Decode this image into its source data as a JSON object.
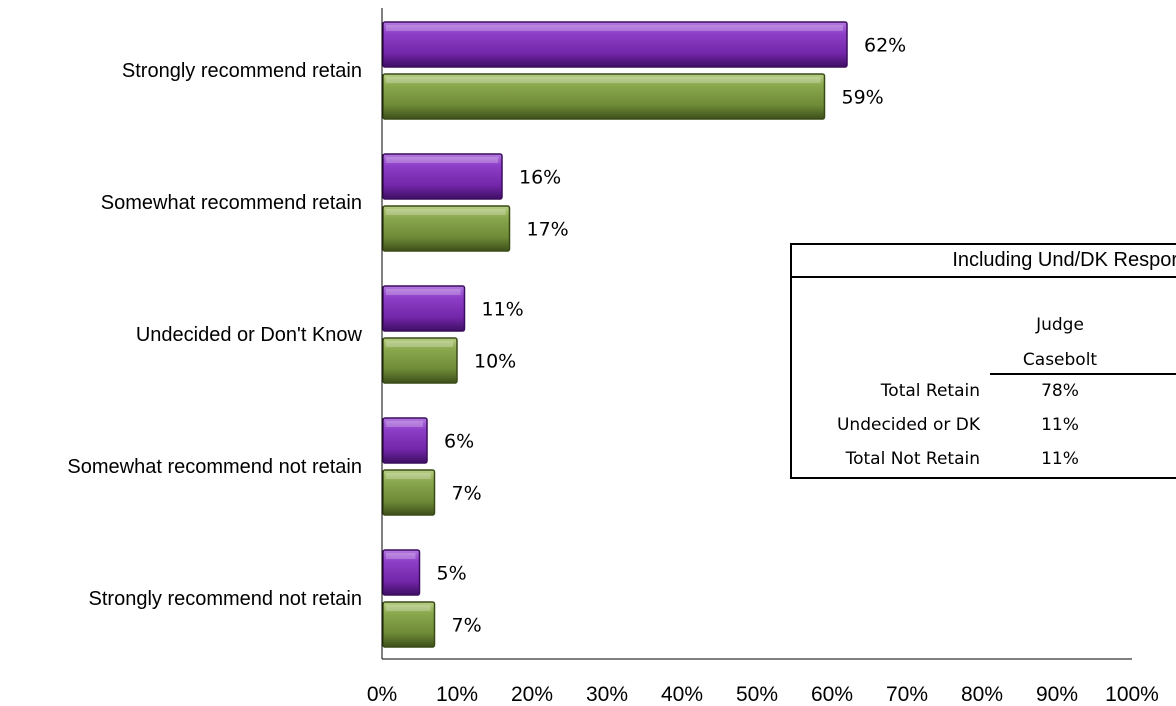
{
  "chart_data": {
    "type": "bar",
    "orientation": "horizontal",
    "categories": [
      "Strongly recommend retain",
      "Somewhat recommend retain",
      "Undecided or Don't Know",
      "Somewhat recommend not retain",
      "Strongly recommend not retain"
    ],
    "series": [
      {
        "values": [
          62,
          16,
          11,
          6,
          5
        ],
        "color": "#7a2fb0"
      },
      {
        "values": [
          59,
          17,
          10,
          7,
          7
        ],
        "color": "#76923c"
      }
    ],
    "value_labels": [
      [
        "62%",
        "16%",
        "11%",
        "6%",
        "5%"
      ],
      [
        "59%",
        "17%",
        "10%",
        "7%",
        "7%"
      ]
    ],
    "xlim": [
      0,
      100
    ],
    "xticks": [
      "0%",
      "10%",
      "20%",
      "30%",
      "40%",
      "50%",
      "60%",
      "70%",
      "80%",
      "90%",
      "100%"
    ],
    "grid": false,
    "legend": "none"
  },
  "summary_table": {
    "title": "Including Und/DK Respor",
    "column_header_line1": "Judge",
    "column_header_line2": "Casebolt",
    "rows": [
      {
        "label": "Total Retain",
        "value": "78%"
      },
      {
        "label": "Undecided or DK",
        "value": "11%"
      },
      {
        "label": "Total Not Retain",
        "value": "11%"
      }
    ]
  }
}
